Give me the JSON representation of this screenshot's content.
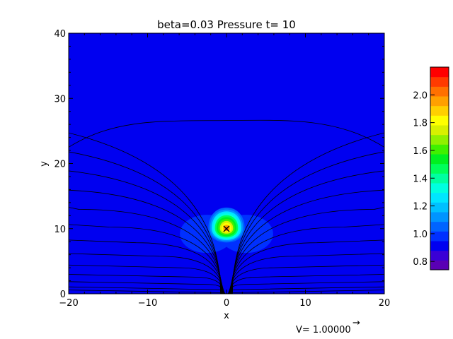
{
  "chart_data": {
    "type": "heatmap",
    "title": "beta=0.03 Pressure t= 10",
    "xlabel": "x",
    "ylabel": "y",
    "xlim": [
      -20,
      20
    ],
    "ylim": [
      0,
      40
    ],
    "xticks": [
      -20,
      -10,
      0,
      10,
      20
    ],
    "yticks": [
      0,
      10,
      20,
      30,
      40
    ],
    "xtick_labels": [
      "−20",
      "−10",
      "0",
      "10",
      "20"
    ],
    "ytick_labels": [
      "0",
      "10",
      "20",
      "30",
      "40"
    ],
    "background_value": 0.93,
    "blob": {
      "center": [
        0,
        10
      ],
      "peak": 2.05,
      "rx": 2.3,
      "ry_up": 3.2,
      "ry_down": 2.4
    },
    "low_lobes": [
      {
        "center": [
          -2.5,
          9.2
        ],
        "value": 0.97
      },
      {
        "center": [
          2.5,
          9.2
        ],
        "value": 0.97
      }
    ],
    "marker": {
      "x": 0,
      "y": 10,
      "symbol": "×"
    },
    "colorbar": {
      "min": 0.74,
      "max": 2.2,
      "ticks": [
        0.8,
        1.0,
        1.2,
        1.4,
        1.6,
        1.8,
        2.0
      ],
      "tick_labels": [
        "0.8",
        "1.0",
        "1.2",
        "1.4",
        "1.6",
        "1.8",
        "2.0"
      ],
      "colors": [
        "#5a00b4",
        "#3a00d6",
        "#0000f0",
        "#0030ff",
        "#0064ff",
        "#0094ff",
        "#00c0ff",
        "#00e6ff",
        "#00ffe0",
        "#00ffa0",
        "#00ff5a",
        "#00f020",
        "#40f000",
        "#90f000",
        "#d8f000",
        "#ffff00",
        "#ffd000",
        "#ffa000",
        "#ff7000",
        "#ff3a00",
        "#ff0000"
      ]
    },
    "velocity_label": "V= 1.00000",
    "velocity_arrow": "→",
    "grid": false,
    "legend": "colorbar right"
  }
}
